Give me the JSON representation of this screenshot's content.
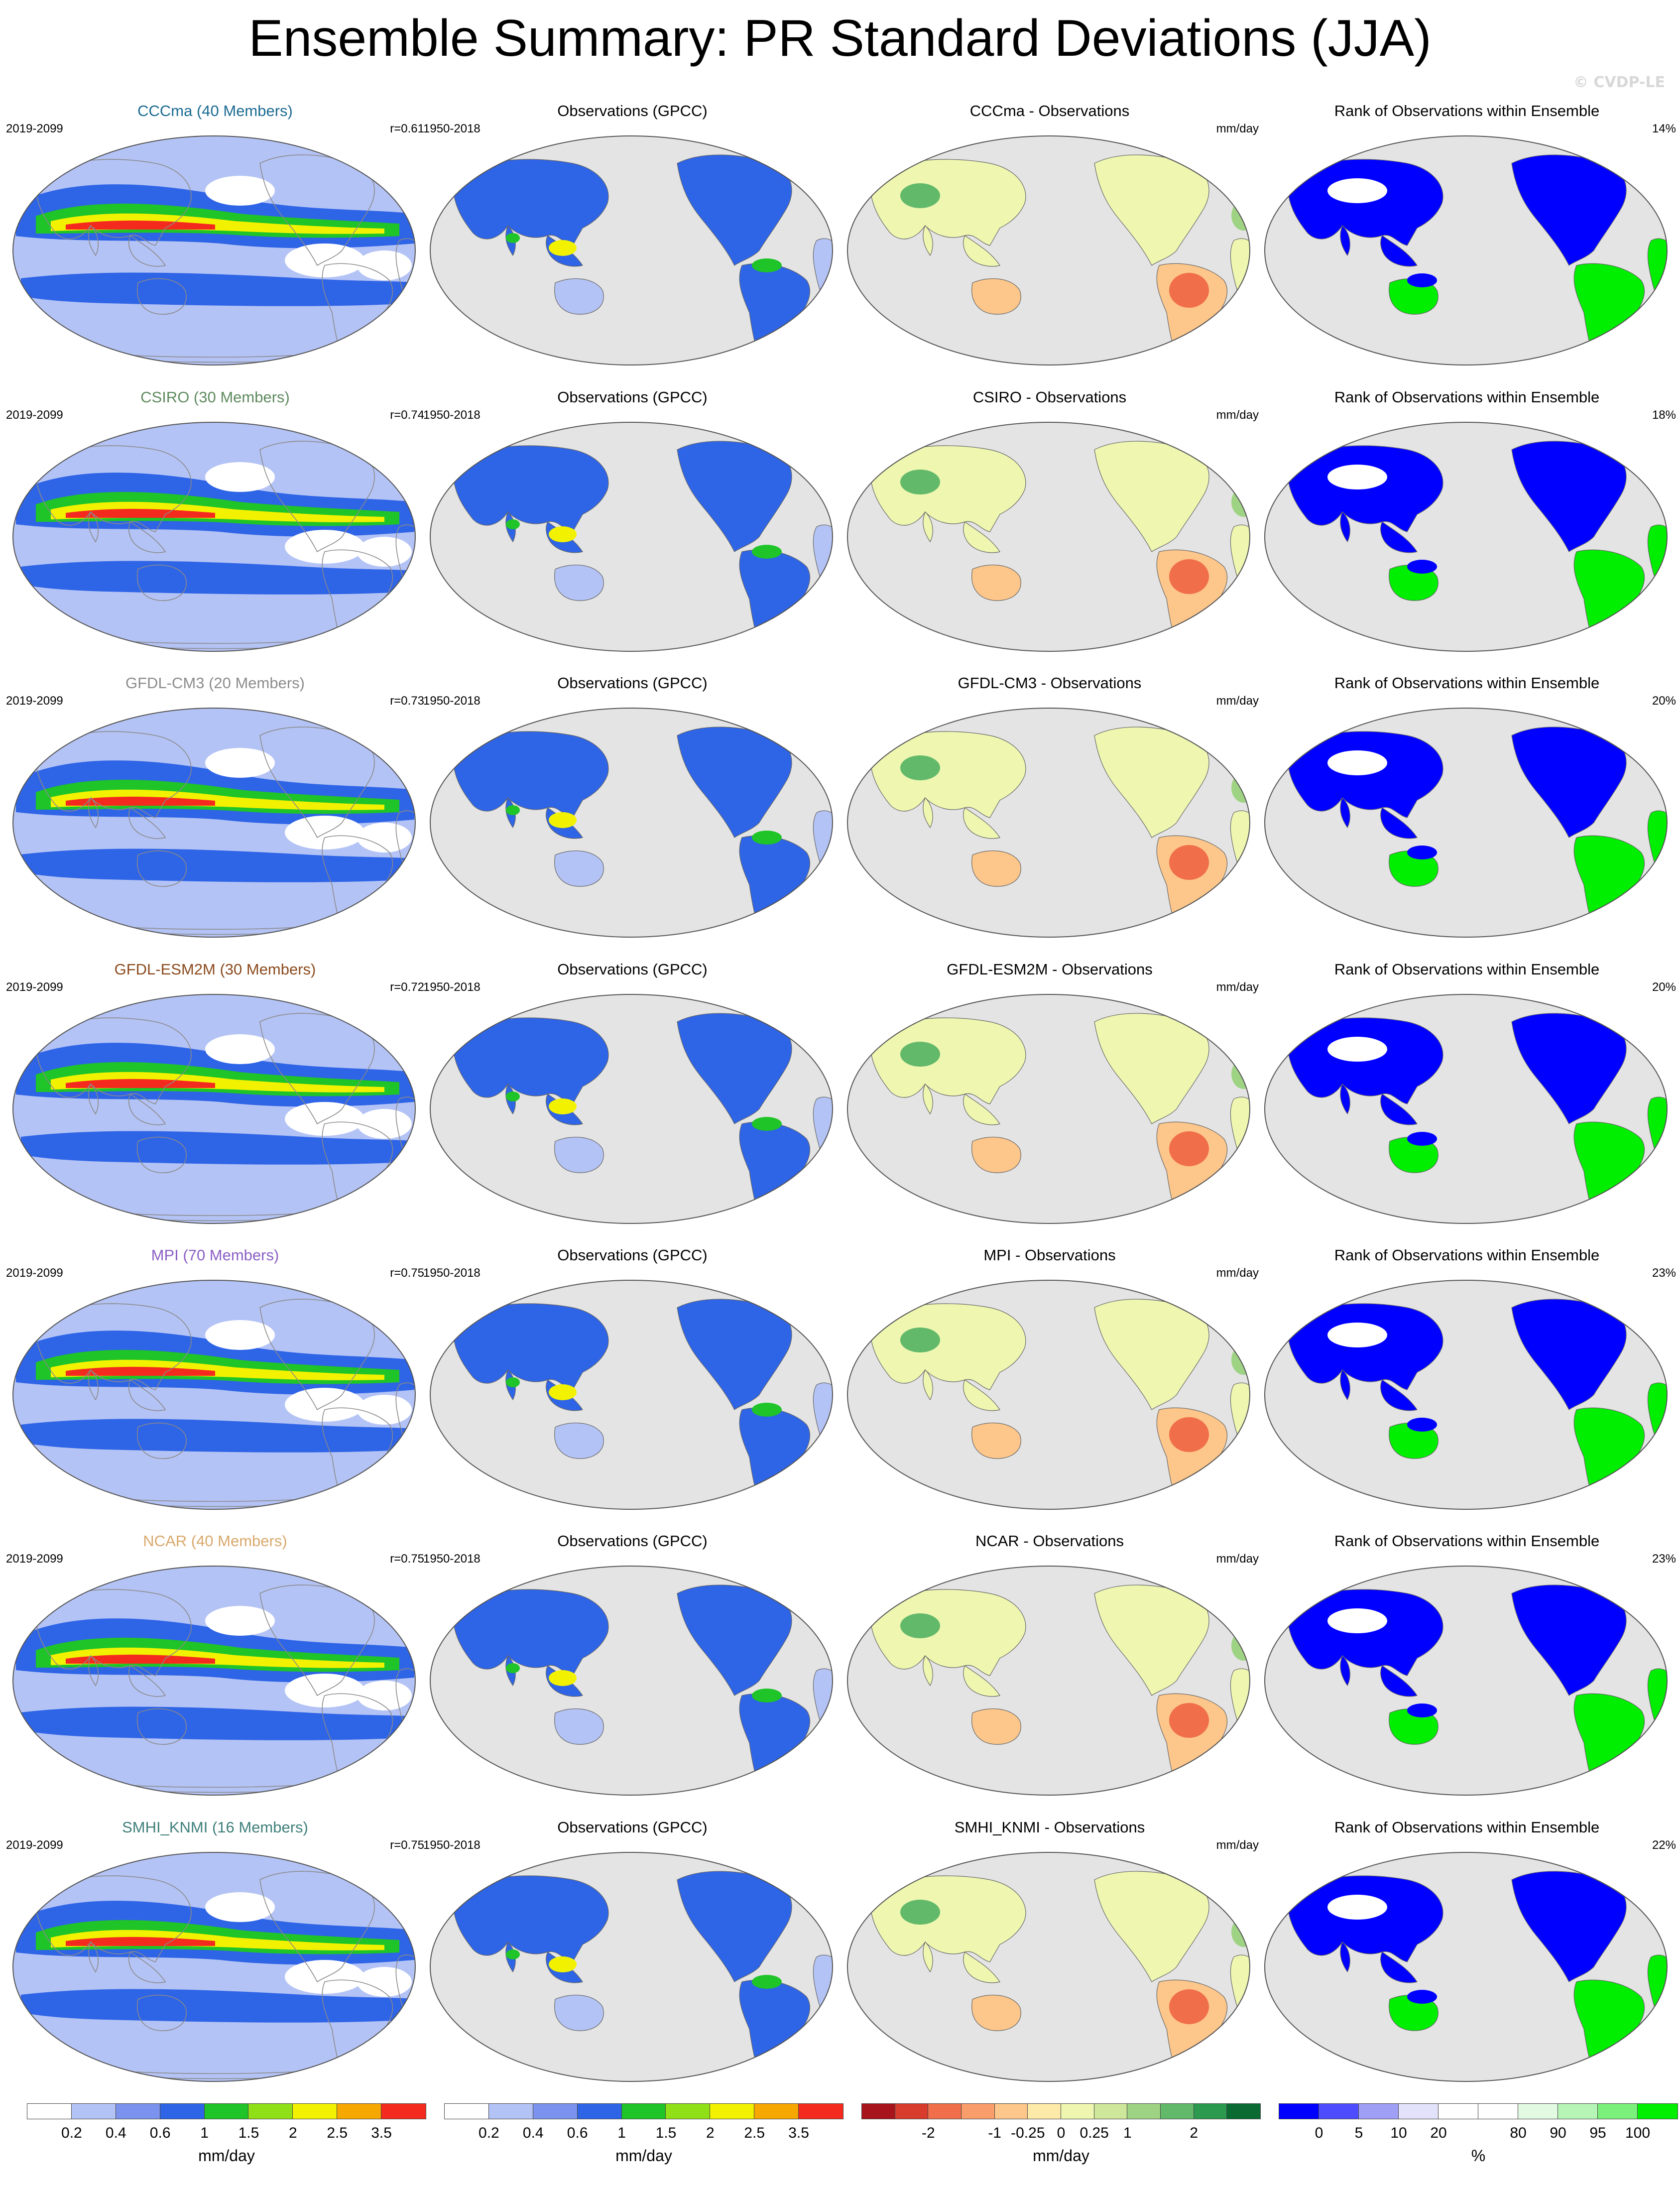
{
  "title": "Ensemble Summary: PR Standard Deviations (JJA)",
  "copyright": "© CVDP-LE",
  "rows": [
    {
      "model": "CCCma (40 Members)",
      "model_color": "#1b6a92",
      "years": "2019-2099",
      "r": "r=0.61",
      "obs_title": "Observations (GPCC)",
      "obs_years": "1950-2018",
      "diff_title": "CCCma - Observations",
      "diff_units": "mm/day",
      "rank_title": "Rank of Observations within Ensemble",
      "rank_pct": "14%"
    },
    {
      "model": "CSIRO (30 Members)",
      "model_color": "#5e8a5e",
      "years": "2019-2099",
      "r": "r=0.74",
      "obs_title": "Observations (GPCC)",
      "obs_years": "1950-2018",
      "diff_title": "CSIRO - Observations",
      "diff_units": "mm/day",
      "rank_title": "Rank of Observations within Ensemble",
      "rank_pct": "18%"
    },
    {
      "model": "GFDL-CM3 (20 Members)",
      "model_color": "#8c8c8c",
      "years": "2019-2099",
      "r": "r=0.73",
      "obs_title": "Observations (GPCC)",
      "obs_years": "1950-2018",
      "diff_title": "GFDL-CM3 - Observations",
      "diff_units": "mm/day",
      "rank_title": "Rank of Observations within Ensemble",
      "rank_pct": "20%"
    },
    {
      "model": "GFDL-ESM2M (30 Members)",
      "model_color": "#8b4a1e",
      "years": "2019-2099",
      "r": "r=0.72",
      "obs_title": "Observations (GPCC)",
      "obs_years": "1950-2018",
      "diff_title": "GFDL-ESM2M - Observations",
      "diff_units": "mm/day",
      "rank_title": "Rank of Observations within Ensemble",
      "rank_pct": "20%"
    },
    {
      "model": "MPI (70 Members)",
      "model_color": "#8a5fc4",
      "years": "2019-2099",
      "r": "r=0.75",
      "obs_title": "Observations (GPCC)",
      "obs_years": "1950-2018",
      "diff_title": "MPI - Observations",
      "diff_units": "mm/day",
      "rank_title": "Rank of Observations within Ensemble",
      "rank_pct": "23%"
    },
    {
      "model": "NCAR (40 Members)",
      "model_color": "#d9a86b",
      "years": "2019-2099",
      "r": "r=0.75",
      "obs_title": "Observations (GPCC)",
      "obs_years": "1950-2018",
      "diff_title": "NCAR - Observations",
      "diff_units": "mm/day",
      "rank_title": "Rank of Observations within Ensemble",
      "rank_pct": "23%"
    },
    {
      "model": "SMHI_KNMI (16 Members)",
      "model_color": "#3f7f7a",
      "years": "2019-2099",
      "r": "r=0.75",
      "obs_title": "Observations (GPCC)",
      "obs_years": "1950-2018",
      "diff_title": "SMHI_KNMI - Observations",
      "diff_units": "mm/day",
      "rank_title": "Rank of Observations within Ensemble",
      "rank_pct": "22%"
    }
  ],
  "colorbars": [
    {
      "units": "mm/day",
      "colors": [
        "#ffffff",
        "#b4c3f5",
        "#7b93ee",
        "#2e64e6",
        "#1ec428",
        "#8fe016",
        "#f2f200",
        "#f7a800",
        "#f52a1e"
      ],
      "ticks": [
        "0.2",
        "0.4",
        "0.6",
        "1",
        "1.5",
        "2",
        "2.5",
        "3.5"
      ]
    },
    {
      "units": "mm/day",
      "colors": [
        "#ffffff",
        "#b4c3f5",
        "#7b93ee",
        "#2e64e6",
        "#1ec428",
        "#8fe016",
        "#f2f200",
        "#f7a800",
        "#f52a1e"
      ],
      "ticks": [
        "0.2",
        "0.4",
        "0.6",
        "1",
        "1.5",
        "2",
        "2.5",
        "3.5"
      ]
    },
    {
      "units": "mm/day",
      "colors": [
        "#a8141c",
        "#d73c2c",
        "#f06e4a",
        "#f99d6a",
        "#fdc68a",
        "#fde9a8",
        "#eef6b0",
        "#cfe79a",
        "#9ed383",
        "#62b96a",
        "#2b9a4e",
        "#0a6a32"
      ],
      "ticks": [
        "-2",
        "-1",
        "-0.25",
        "0",
        "0.25",
        "1",
        "2"
      ]
    },
    {
      "units": "%",
      "colors": [
        "#0000ff",
        "#4d4dff",
        "#9f9ff5",
        "#e2e2fa",
        "#ffffff",
        "#ffffff",
        "#e2fae2",
        "#b7f5b7",
        "#7bf07b",
        "#00ee00"
      ],
      "ticks": [
        "0",
        "5",
        "10",
        "20",
        "80",
        "90",
        "95",
        "100"
      ]
    }
  ]
}
